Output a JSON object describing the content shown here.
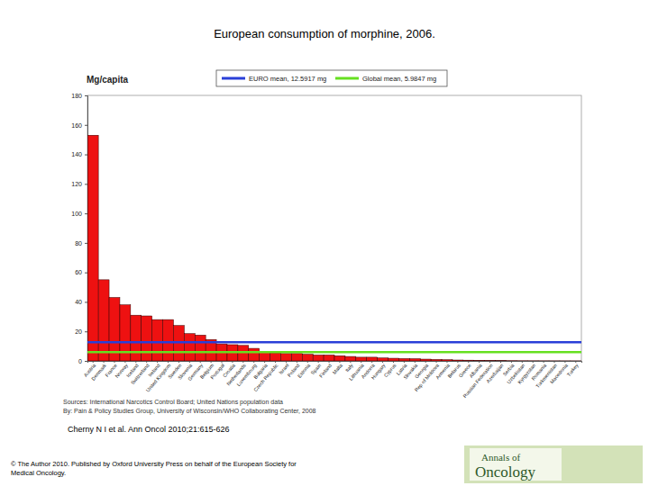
{
  "chart_data": {
    "type": "bar",
    "title": "European consumption of morphine, 2006.",
    "ylabel": "Mg/capita",
    "categories": [
      "Austria",
      "Denmark",
      "France",
      "Norway",
      "Iceland",
      "Switzerland",
      "Ireland",
      "United Kingdom",
      "Sweden",
      "Slovenia",
      "Germany",
      "Belgium",
      "Portugal",
      "Croatia",
      "Netherlands",
      "Luxembourg",
      "Bulgaria",
      "Czech Republic",
      "Israel",
      "Poland",
      "Estonia",
      "Spain",
      "Finland",
      "Malta",
      "Italy",
      "Lithuania",
      "Andorra",
      "Hungary",
      "Cyprus",
      "Latvia",
      "Slovakia",
      "Georgia",
      "Rep of Moldova",
      "Armenia",
      "Belarus",
      "Greece",
      "Albania",
      "Russian Federation",
      "Azerbaijan",
      "Serbia",
      "Uzbekistan",
      "Kyrgyzstan",
      "Romania",
      "Turkmenistan",
      "Macedonia",
      "Turkey"
    ],
    "values": [
      153,
      55,
      43,
      38,
      31,
      30.5,
      28,
      28,
      24,
      18.5,
      17.5,
      14.5,
      11.5,
      11,
      10.5,
      8.5,
      6.5,
      5.5,
      5,
      5,
      4.5,
      4,
      4,
      3.5,
      3,
      2.5,
      2.5,
      2,
      1.8,
      1.6,
      1.5,
      1.2,
      1,
      0.8,
      0.6,
      0.5,
      0.4,
      0.3,
      0.2,
      0.15,
      0.1,
      0.08,
      0.06,
      0.05,
      0.04,
      0.03
    ],
    "color": "#ee1111",
    "ylim": [
      0,
      180
    ],
    "yticks": [
      0,
      20,
      40,
      60,
      80,
      100,
      120,
      140,
      160,
      180
    ],
    "reference_lines": [
      {
        "name": "EURO mean, 12.5917 mg",
        "value": 12.5917,
        "color": "#2a3fd8"
      },
      {
        "name": "Global mean, 5.9847 mg",
        "value": 5.9847,
        "color": "#66e020"
      }
    ],
    "annotations": [
      "Sources: International Narcotics Control Board; United Nations population data",
      "By: Pain & Policy Studies Group, University of Wisconsin/WHO Collaborating Center, 2008"
    ]
  },
  "citation": "Cherny N I et al. Ann Oncol 2010;21:615-626",
  "copyright": [
    "© The Author 2010. Published by Oxford University Press on behalf of the European Society for",
    "Medical Oncology."
  ],
  "logo": [
    "Annals of",
    "Oncology"
  ]
}
